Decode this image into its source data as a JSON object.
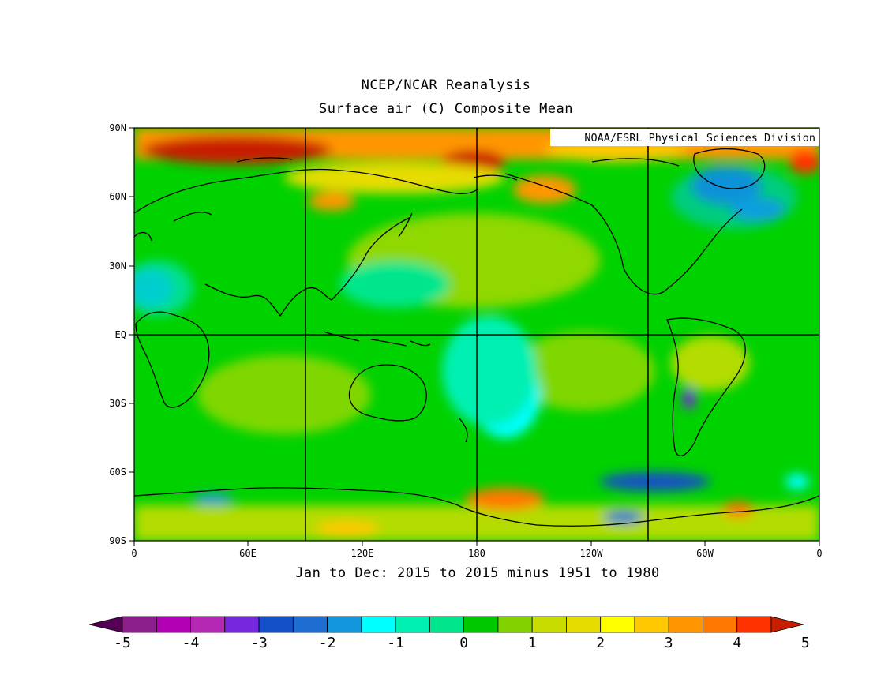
{
  "title": "NCEP/NCAR Reanalysis",
  "subtitle": "Surface air (C) Composite Mean",
  "credit": "NOAA/ESRL Physical Sciences Division",
  "date_range": "Jan to Dec: 2015 to 2015 minus 1951 to 1980",
  "map": {
    "lon_ticks": [
      "0",
      "60E",
      "120E",
      "180",
      "120W",
      "60W",
      "0"
    ],
    "lat_ticks": [
      "90N",
      "60N",
      "30N",
      "EQ",
      "30S",
      "60S",
      "90S"
    ]
  },
  "colorbar": {
    "labels": [
      "-5",
      "-4",
      "-3",
      "-2",
      "-1",
      "0",
      "1",
      "2",
      "3",
      "4",
      "5"
    ],
    "colors": [
      "#540054",
      "#8c1e8c",
      "#b400b4",
      "#b428b4",
      "#7828dc",
      "#1450c8",
      "#1e6ed2",
      "#1496dc",
      "#00ffff",
      "#00f0b4",
      "#00e68c",
      "#00c800",
      "#82d200",
      "#c8dc00",
      "#e6dc00",
      "#ffff00",
      "#ffc800",
      "#ff9600",
      "#ff7800",
      "#ff3200",
      "#c81e00"
    ]
  },
  "land_outline": "black coastlines"
}
